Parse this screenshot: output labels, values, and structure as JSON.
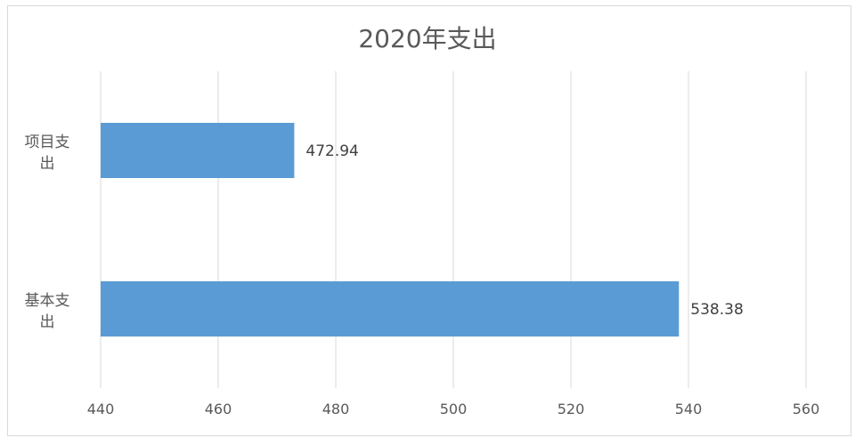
{
  "chart_data": {
    "type": "bar",
    "orientation": "horizontal",
    "title": "2020年支出",
    "categories": [
      {
        "line1": "项目支",
        "line2": "出"
      },
      {
        "line1": "基本支",
        "line2": "出"
      }
    ],
    "values": [
      472.94,
      538.38
    ],
    "value_labels": [
      "472.94",
      "538.38"
    ],
    "xlim": [
      440,
      560
    ],
    "xticks": [
      440,
      460,
      480,
      500,
      520,
      540,
      560
    ],
    "grid": true,
    "bar_color": "#5b9bd5"
  }
}
